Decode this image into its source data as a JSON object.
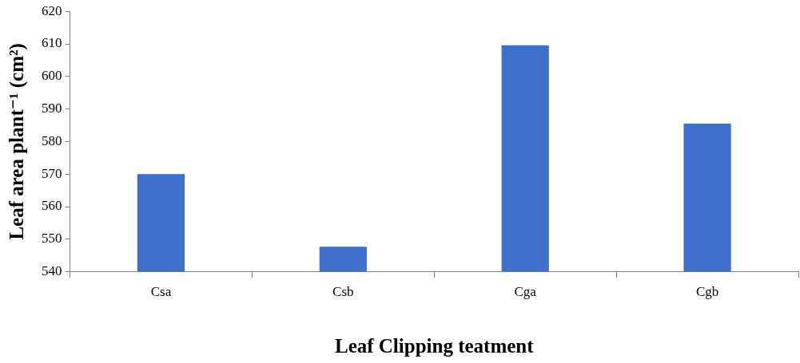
{
  "chart_data": {
    "type": "bar",
    "xlabel": "Leaf Clipping teatment",
    "ylabel": "Leaf area plant⁻¹ (cm²)",
    "categories": [
      "Csa",
      "Csb",
      "Cga",
      "Cgb"
    ],
    "values": [
      570,
      547.7,
      609.6,
      585.5
    ],
    "color": "#3d6fcb",
    "ylim": [
      540,
      620
    ],
    "yticks": [
      540,
      550,
      560,
      570,
      580,
      590,
      600,
      610,
      620
    ]
  }
}
